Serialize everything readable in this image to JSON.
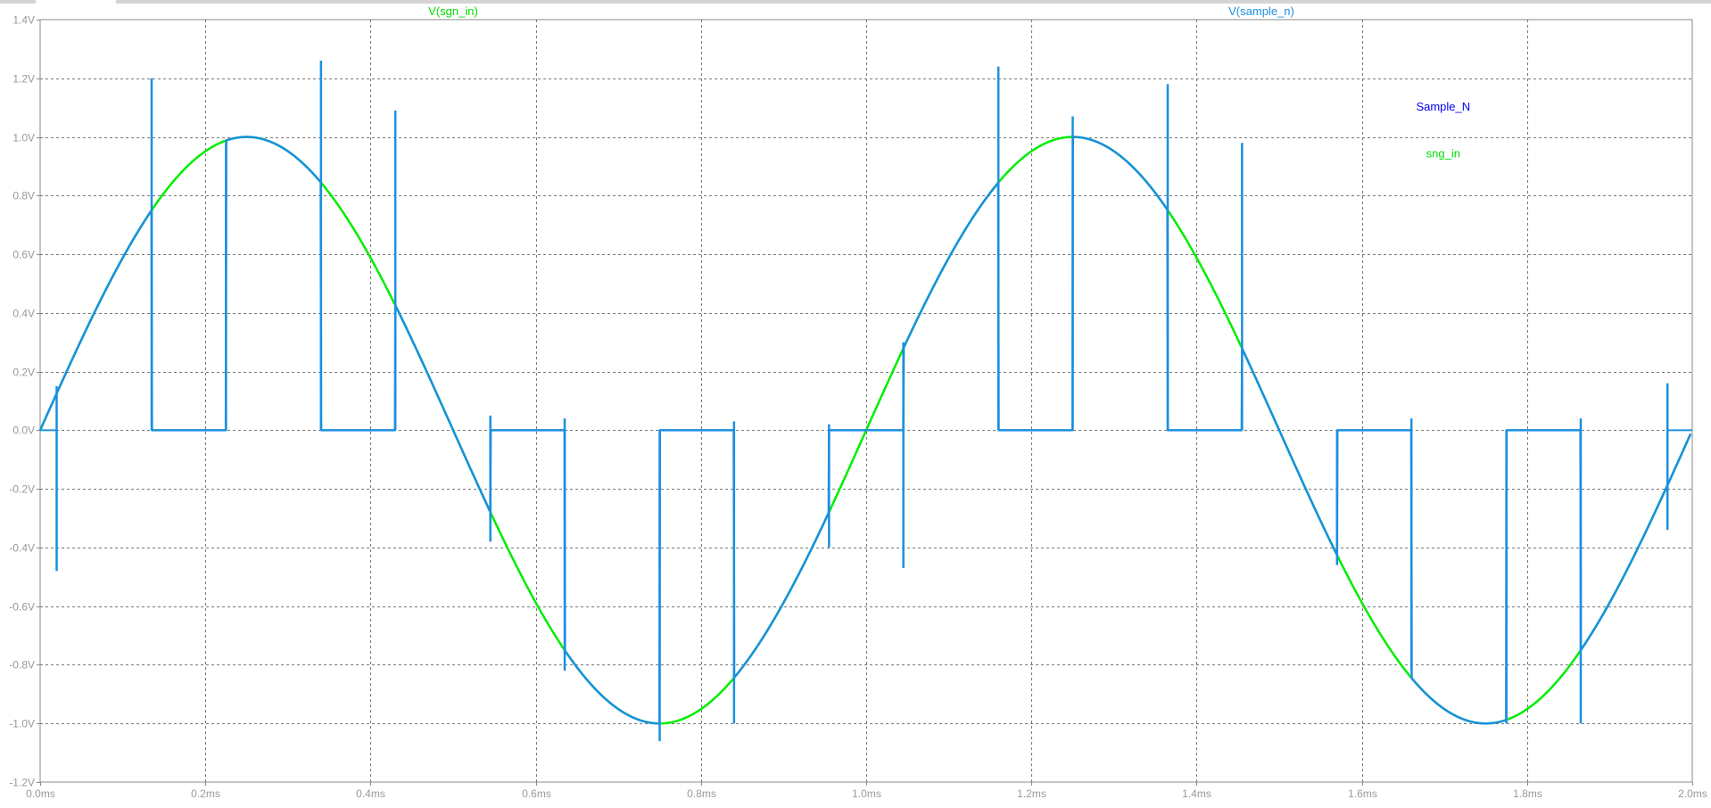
{
  "chart_data": {
    "type": "line",
    "trace_titles": [
      {
        "text": "V(sgn_in)",
        "color": "#00dd00"
      },
      {
        "text": "V(sample_n)",
        "color": "#1a8fe0"
      }
    ],
    "annotations": [
      {
        "text": "Sample_N",
        "color": "#0000ee",
        "at": [
          1.6985,
          1.09
        ]
      },
      {
        "text": "sng_in",
        "color": "#00dd00",
        "at": [
          1.6985,
          0.93
        ]
      }
    ],
    "x_ticks": [
      "0.0ms",
      "0.2ms",
      "0.4ms",
      "0.6ms",
      "0.8ms",
      "1.0ms",
      "1.2ms",
      "1.4ms",
      "1.6ms",
      "1.8ms",
      "2.0ms"
    ],
    "y_ticks": [
      "1.4V",
      "1.2V",
      "1.0V",
      "0.8V",
      "0.6V",
      "0.4V",
      "0.2V",
      "0.0V",
      "-0.2V",
      "-0.4V",
      "-0.6V",
      "-0.8V",
      "-1.0V",
      "-1.2V"
    ],
    "xlim": [
      0,
      2.0
    ],
    "ylim": [
      -1.2,
      1.4
    ],
    "grid": true,
    "series": [
      {
        "name": "V(sgn_in)",
        "color": "#00ee00",
        "function": "sin",
        "amplitude": 1.0,
        "frequency_khz": 1.0,
        "x_start": 0.0,
        "x_end": 1.998
      },
      {
        "name": "V(sample_n)",
        "color": "#1a8fe0",
        "hold_intervals": [
          [
            0.135,
            0.225
          ],
          [
            0.34,
            0.43
          ],
          [
            0.545,
            0.635
          ],
          [
            0.75,
            0.84
          ],
          [
            0.955,
            1.045
          ],
          [
            1.16,
            1.25
          ],
          [
            1.365,
            1.455
          ],
          [
            1.57,
            1.66
          ],
          [
            1.775,
            1.865
          ]
        ],
        "spikes": [
          {
            "x": 0.02,
            "from": 0.15,
            "to": -0.48
          },
          {
            "x": 0.135,
            "from": 1.2,
            "to": 0.0
          },
          {
            "x": 0.225,
            "from": 0.0,
            "to": 0.98
          },
          {
            "x": 0.34,
            "from": 1.26,
            "to": 0.0
          },
          {
            "x": 0.43,
            "from": 0.0,
            "to": 1.09
          },
          {
            "x": 0.545,
            "from": 0.05,
            "to": -0.38
          },
          {
            "x": 0.635,
            "from": 0.04,
            "to": -0.82
          },
          {
            "x": 0.75,
            "from": 0.0,
            "to": -1.06
          },
          {
            "x": 0.84,
            "from": 0.03,
            "to": -1.0
          },
          {
            "x": 0.955,
            "from": 0.02,
            "to": -0.4
          },
          {
            "x": 1.045,
            "from": 0.3,
            "to": -0.47
          },
          {
            "x": 1.16,
            "from": 1.24,
            "to": 0.0
          },
          {
            "x": 1.25,
            "from": 0.0,
            "to": 1.07
          },
          {
            "x": 1.365,
            "from": 1.18,
            "to": 0.0
          },
          {
            "x": 1.455,
            "from": 0.0,
            "to": 0.98
          },
          {
            "x": 1.57,
            "from": 0.0,
            "to": -0.46
          },
          {
            "x": 1.66,
            "from": 0.04,
            "to": -0.82
          },
          {
            "x": 1.775,
            "from": 0.0,
            "to": -1.0
          },
          {
            "x": 1.865,
            "from": 0.04,
            "to": -1.0
          },
          {
            "x": 1.97,
            "from": 0.16,
            "to": -0.34
          }
        ]
      }
    ]
  }
}
